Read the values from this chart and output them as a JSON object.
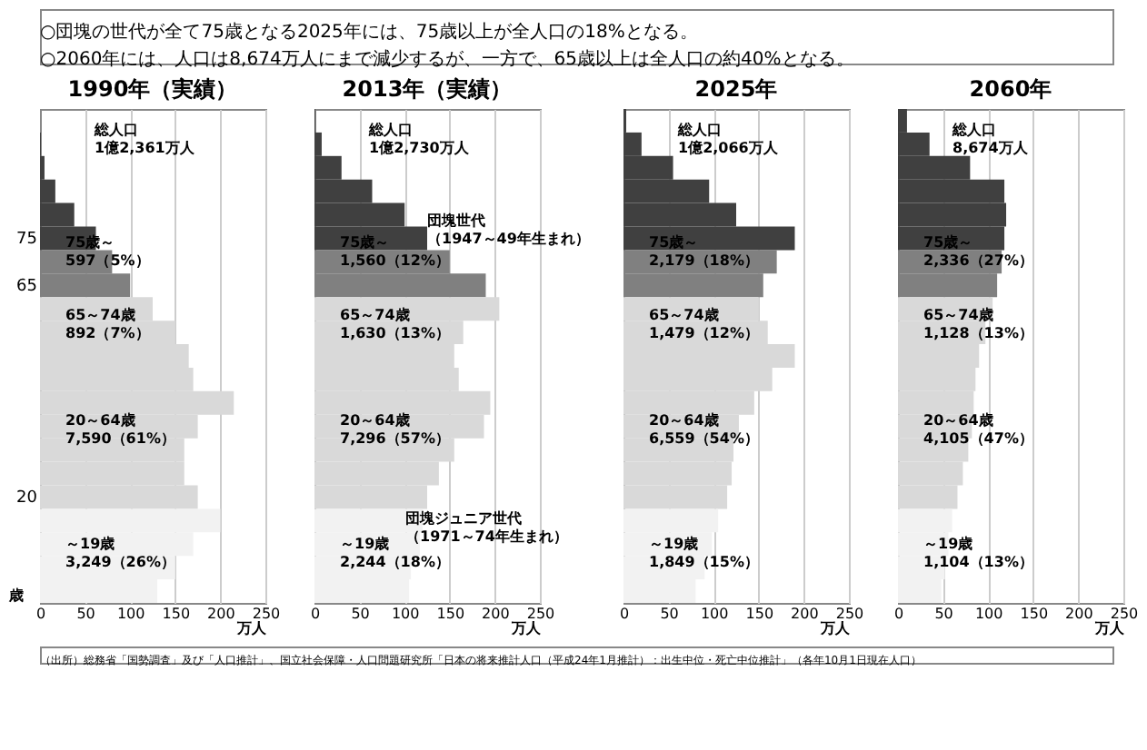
{
  "chart_data": [
    {
      "type": "other",
      "annotations": [
        "○団塊の世代が全て75歳となる2025年には、75歳以上が全人口の18%となる。",
        "○2060年には、人口は8,674万人にまで減少するが、一方で、65歳以上は全人口の約40%となる。"
      ]
    },
    {
      "type": "bar",
      "orientation": "horizontal",
      "title": "1990年（実績）",
      "ylabel": "歳",
      "xlabel": "万人",
      "categories": [
        null,
        null,
        null,
        null,
        null,
        "75",
        null,
        "65",
        null,
        null,
        null,
        null,
        null,
        null,
        null,
        null,
        "20",
        null,
        null,
        null,
        null
      ],
      "values": [
        0,
        1,
        5,
        17,
        38,
        62,
        80,
        100,
        125,
        150,
        165,
        170,
        215,
        175,
        160,
        160,
        175,
        200,
        170,
        150,
        130
      ],
      "colors": [
        "#404040",
        "#404040",
        "#404040",
        "#404040",
        "#404040",
        "#404040",
        "#808080",
        "#808080",
        "#d9d9d9",
        "#d9d9d9",
        "#d9d9d9",
        "#d9d9d9",
        "#d9d9d9",
        "#d9d9d9",
        "#d9d9d9",
        "#d9d9d9",
        "#d9d9d9",
        "#f2f2f2",
        "#f2f2f2",
        "#f2f2f2",
        "#f2f2f2"
      ],
      "xlim": [
        0,
        250
      ],
      "xticks": [
        0,
        50,
        100,
        150,
        200,
        250
      ],
      "grid": "x",
      "annotations": [
        "総人口\n1億2,361万人",
        "75歳～\n597（5%）",
        "65～74歳\n892（7%）",
        "20～64歳\n7,590（61%）",
        "～19歳\n3,249（26%）"
      ]
    },
    {
      "type": "bar",
      "orientation": "horizontal",
      "title": "2013年（実績）",
      "xlabel": "万人",
      "tick_labels": "x",
      "categories": [
        null,
        null,
        null,
        null,
        null,
        "75",
        null,
        "65",
        null,
        null,
        null,
        null,
        null,
        null,
        null,
        null,
        "20",
        null,
        null,
        null,
        null
      ],
      "values": [
        1,
        8,
        30,
        64,
        100,
        125,
        150,
        190,
        205,
        165,
        155,
        160,
        195,
        188,
        155,
        138,
        125,
        120,
        117,
        107,
        105
      ],
      "colors": [
        "#404040",
        "#404040",
        "#404040",
        "#404040",
        "#404040",
        "#404040",
        "#808080",
        "#808080",
        "#d9d9d9",
        "#d9d9d9",
        "#d9d9d9",
        "#d9d9d9",
        "#d9d9d9",
        "#d9d9d9",
        "#d9d9d9",
        "#d9d9d9",
        "#d9d9d9",
        "#f2f2f2",
        "#f2f2f2",
        "#f2f2f2",
        "#f2f2f2"
      ],
      "xlim": [
        0,
        250
      ],
      "xticks": [
        0,
        50,
        100,
        150,
        200,
        250
      ],
      "grid": "x",
      "annotations": [
        "総人口\n1億2,730万人",
        "75歳～\n1,560（12%）",
        "65～74歳\n1,630（13%）",
        "20～64歳\n7,296（57%）",
        "～19歳\n2,244（18%）",
        "団塊世代（1947～49年生まれ）",
        "団塊ジュニア世代（1971～74年生まれ）"
      ]
    },
    {
      "type": "bar",
      "orientation": "horizontal",
      "title": "2025年",
      "xlabel": "万人",
      "tick_labels": "x",
      "categories": [
        null,
        null,
        null,
        null,
        null,
        "75",
        null,
        "65",
        null,
        null,
        null,
        null,
        null,
        null,
        null,
        null,
        "20",
        null,
        null,
        null,
        null
      ],
      "values": [
        3,
        20,
        55,
        95,
        125,
        190,
        170,
        155,
        150,
        160,
        190,
        165,
        145,
        128,
        122,
        120,
        115,
        105,
        98,
        90,
        80
      ],
      "colors": [
        "#404040",
        "#404040",
        "#404040",
        "#404040",
        "#404040",
        "#404040",
        "#808080",
        "#808080",
        "#d9d9d9",
        "#d9d9d9",
        "#d9d9d9",
        "#d9d9d9",
        "#d9d9d9",
        "#d9d9d9",
        "#d9d9d9",
        "#d9d9d9",
        "#d9d9d9",
        "#f2f2f2",
        "#f2f2f2",
        "#f2f2f2",
        "#f2f2f2"
      ],
      "xlim": [
        0,
        250
      ],
      "xticks": [
        0,
        50,
        100,
        150,
        200,
        250
      ],
      "grid": "x",
      "annotations": [
        "総人口\n1億2,066万人",
        "75歳～\n2,179（18%）",
        "65～74歳\n1,479（12%）",
        "20～64歳\n6,559（54%）",
        "～19歳\n1,849（15%）"
      ]
    },
    {
      "type": "bar",
      "orientation": "horizontal",
      "title": "2060年",
      "xlabel": "万人",
      "tick_labels": "x",
      "categories": [
        null,
        null,
        null,
        null,
        null,
        "75",
        null,
        "65",
        null,
        null,
        null,
        null,
        null,
        null,
        null,
        null,
        "20",
        null,
        null,
        null,
        null
      ],
      "values": [
        10,
        35,
        80,
        118,
        120,
        118,
        115,
        110,
        105,
        97,
        90,
        86,
        84,
        82,
        78,
        72,
        66,
        60,
        56,
        52,
        48
      ],
      "colors": [
        "#404040",
        "#404040",
        "#404040",
        "#404040",
        "#404040",
        "#404040",
        "#808080",
        "#808080",
        "#d9d9d9",
        "#d9d9d9",
        "#d9d9d9",
        "#d9d9d9",
        "#d9d9d9",
        "#d9d9d9",
        "#d9d9d9",
        "#d9d9d9",
        "#d9d9d9",
        "#f2f2f2",
        "#f2f2f2",
        "#f2f2f2",
        "#f2f2f2"
      ],
      "xlim": [
        0,
        250
      ],
      "xticks": [
        0,
        50,
        100,
        150,
        200,
        250
      ],
      "grid": "x",
      "annotations": [
        "総人口\n8,674万人",
        "75歳～\n2,336（27%）",
        "65～74歳\n1,128（13%）",
        "20～64歳\n4,105（47%）",
        "～19歳\n1,104（13%）"
      ]
    },
    {
      "type": "other",
      "annotations": [
        "（出所）総務省「国勢調査」及び「人口推計」、国立社会保障・人口問題研究所「日本の将来推計人口（平成24年1月推計）：出生中位・死亡中位推計」（各年10月1日現在人口）"
      ]
    }
  ]
}
